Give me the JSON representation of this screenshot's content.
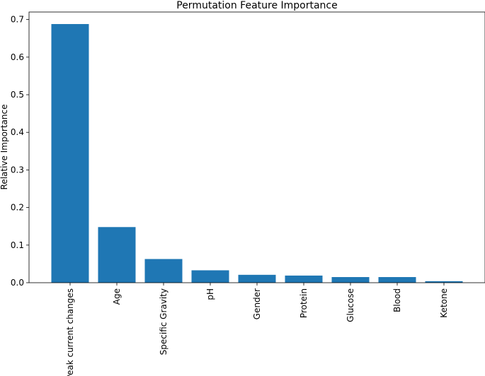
{
  "chart_data": {
    "type": "bar",
    "title": "Permutation Feature Importance",
    "xlabel": "",
    "ylabel": "Relative Importance",
    "categories": [
      "Peak current changes",
      "Age",
      "Specific Gravity",
      "pH",
      "Gender",
      "Protein",
      "Glucose",
      "Blood",
      "Ketone"
    ],
    "values": [
      0.688,
      0.148,
      0.063,
      0.033,
      0.021,
      0.019,
      0.015,
      0.015,
      0.004
    ],
    "ylim": [
      0,
      0.72
    ],
    "yticks": [
      0.0,
      0.1,
      0.2,
      0.3,
      0.4,
      0.5,
      0.6,
      0.7
    ],
    "ytick_labels": [
      "0.0",
      "0.1",
      "0.2",
      "0.3",
      "0.4",
      "0.5",
      "0.6",
      "0.7"
    ],
    "bar_color": "#1f77b4",
    "grid": false,
    "legend": "none",
    "xtick_rotation": "vertical"
  }
}
